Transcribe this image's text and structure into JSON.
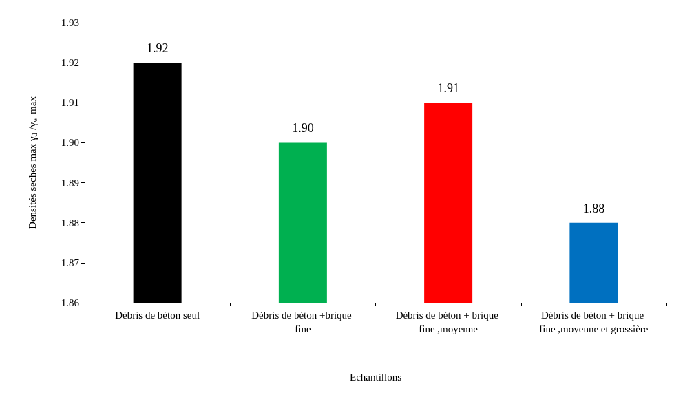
{
  "chart_data": {
    "type": "bar",
    "xlabel": "Echantillons",
    "ylabel": "Densités seches max γ$_{d}$ /γ$_{w}$ max",
    "categories": [
      "Débris de béton seul",
      "Débris de béton +brique fine",
      "Débris de béton + brique fine ,moyenne",
      "Débris de béton + brique fine ,moyenne et grossière"
    ],
    "values": [
      1.92,
      1.9,
      1.91,
      1.88
    ],
    "colors": [
      "#000000",
      "#00b050",
      "#ff0000",
      "#0070c0"
    ],
    "value_labels": [
      "1.92",
      "1.90",
      "1.91",
      "1.88"
    ],
    "ylim": [
      1.86,
      1.93
    ],
    "yticks": [
      {
        "value": 1.86,
        "label": "1.86"
      },
      {
        "value": 1.87,
        "label": "1.87"
      },
      {
        "value": 1.88,
        "label": "1.88"
      },
      {
        "value": 1.89,
        "label": "1.89"
      },
      {
        "value": 1.9,
        "label": "1.90"
      },
      {
        "value": 1.91,
        "label": "1.91"
      },
      {
        "value": 1.92,
        "label": "1.92"
      },
      {
        "value": 1.93,
        "label": "1.93"
      }
    ],
    "grid": false
  }
}
